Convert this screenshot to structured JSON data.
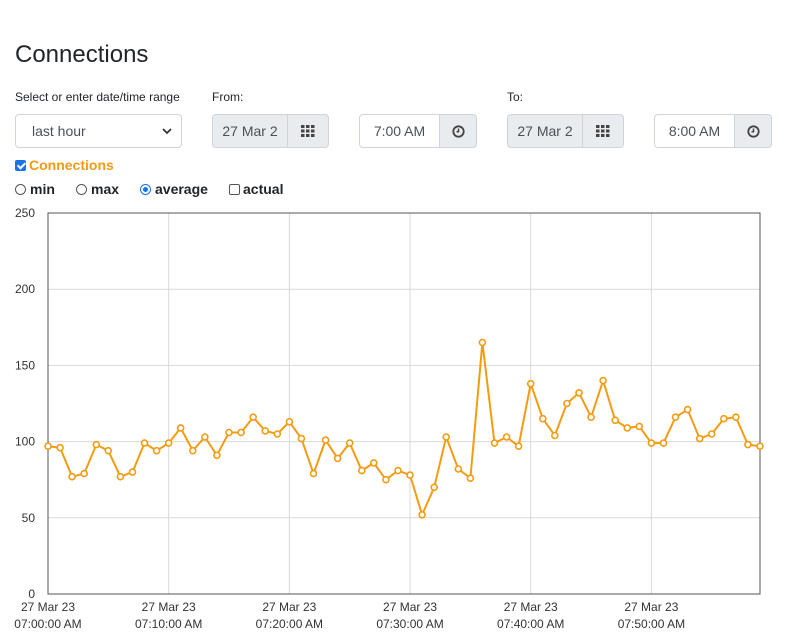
{
  "page": {
    "title": "Connections"
  },
  "range": {
    "label": "Select or enter date/time range",
    "selected": "last hour"
  },
  "from": {
    "label": "From:",
    "date": "27 Mar 2",
    "time": "7:00 AM"
  },
  "to": {
    "label": "To:",
    "date": "27 Mar 2",
    "time": "8:00 AM"
  },
  "series_toggle": {
    "label": "Connections",
    "checked": true
  },
  "options": [
    {
      "label": "min",
      "type": "radio",
      "checked": false
    },
    {
      "label": "max",
      "type": "radio",
      "checked": false
    },
    {
      "label": "average",
      "type": "radio",
      "checked": true
    },
    {
      "label": "actual",
      "type": "checkbox",
      "checked": false
    }
  ],
  "colors": {
    "series": "#f39c12",
    "grid": "#d9d9d9",
    "accent": "#1a73e8"
  },
  "icons": {
    "calendar": "grid-calendar-icon",
    "clock": "clock-icon"
  },
  "chart_data": {
    "type": "line",
    "ylim": [
      0,
      250
    ],
    "yticks": [
      0,
      50,
      100,
      150,
      200,
      250
    ],
    "xlim": [
      "07:00:00",
      "07:59:00"
    ],
    "xticks": [
      {
        "date": "27 Mar 23",
        "time": "07:00:00 AM"
      },
      {
        "date": "27 Mar 23",
        "time": "07:10:00 AM"
      },
      {
        "date": "27 Mar 23",
        "time": "07:20:00 AM"
      },
      {
        "date": "27 Mar 23",
        "time": "07:30:00 AM"
      },
      {
        "date": "27 Mar 23",
        "time": "07:40:00 AM"
      },
      {
        "date": "27 Mar 23",
        "time": "07:50:00 AM"
      }
    ],
    "grid": true,
    "series": [
      {
        "x": [
          "07:00",
          "07:01",
          "07:02",
          "07:03",
          "07:04",
          "07:05",
          "07:06",
          "07:07",
          "07:08",
          "07:09",
          "07:10",
          "07:11",
          "07:12",
          "07:13",
          "07:14",
          "07:15",
          "07:16",
          "07:17",
          "07:18",
          "07:19",
          "07:20",
          "07:21",
          "07:22",
          "07:23",
          "07:24",
          "07:25",
          "07:26",
          "07:27",
          "07:28",
          "07:29",
          "07:30",
          "07:31",
          "07:32",
          "07:33",
          "07:34",
          "07:35",
          "07:36",
          "07:37",
          "07:38",
          "07:39",
          "07:40",
          "07:41",
          "07:42",
          "07:43",
          "07:44",
          "07:45",
          "07:46",
          "07:47",
          "07:48",
          "07:49",
          "07:50",
          "07:51",
          "07:52",
          "07:53",
          "07:54",
          "07:55",
          "07:56",
          "07:57",
          "07:58",
          "07:59"
        ],
        "values": [
          97,
          96,
          77,
          79,
          98,
          94,
          77,
          80,
          99,
          94,
          99,
          109,
          94,
          103,
          91,
          106,
          106,
          116,
          107,
          105,
          113,
          102,
          79,
          101,
          89,
          99,
          81,
          86,
          75,
          81,
          78,
          52,
          70,
          103,
          82,
          76,
          165,
          99,
          103,
          97,
          138,
          115,
          104,
          125,
          132,
          116,
          140,
          114,
          109,
          110,
          99,
          99,
          116,
          121,
          102,
          105,
          115,
          116,
          98,
          97
        ]
      }
    ]
  }
}
